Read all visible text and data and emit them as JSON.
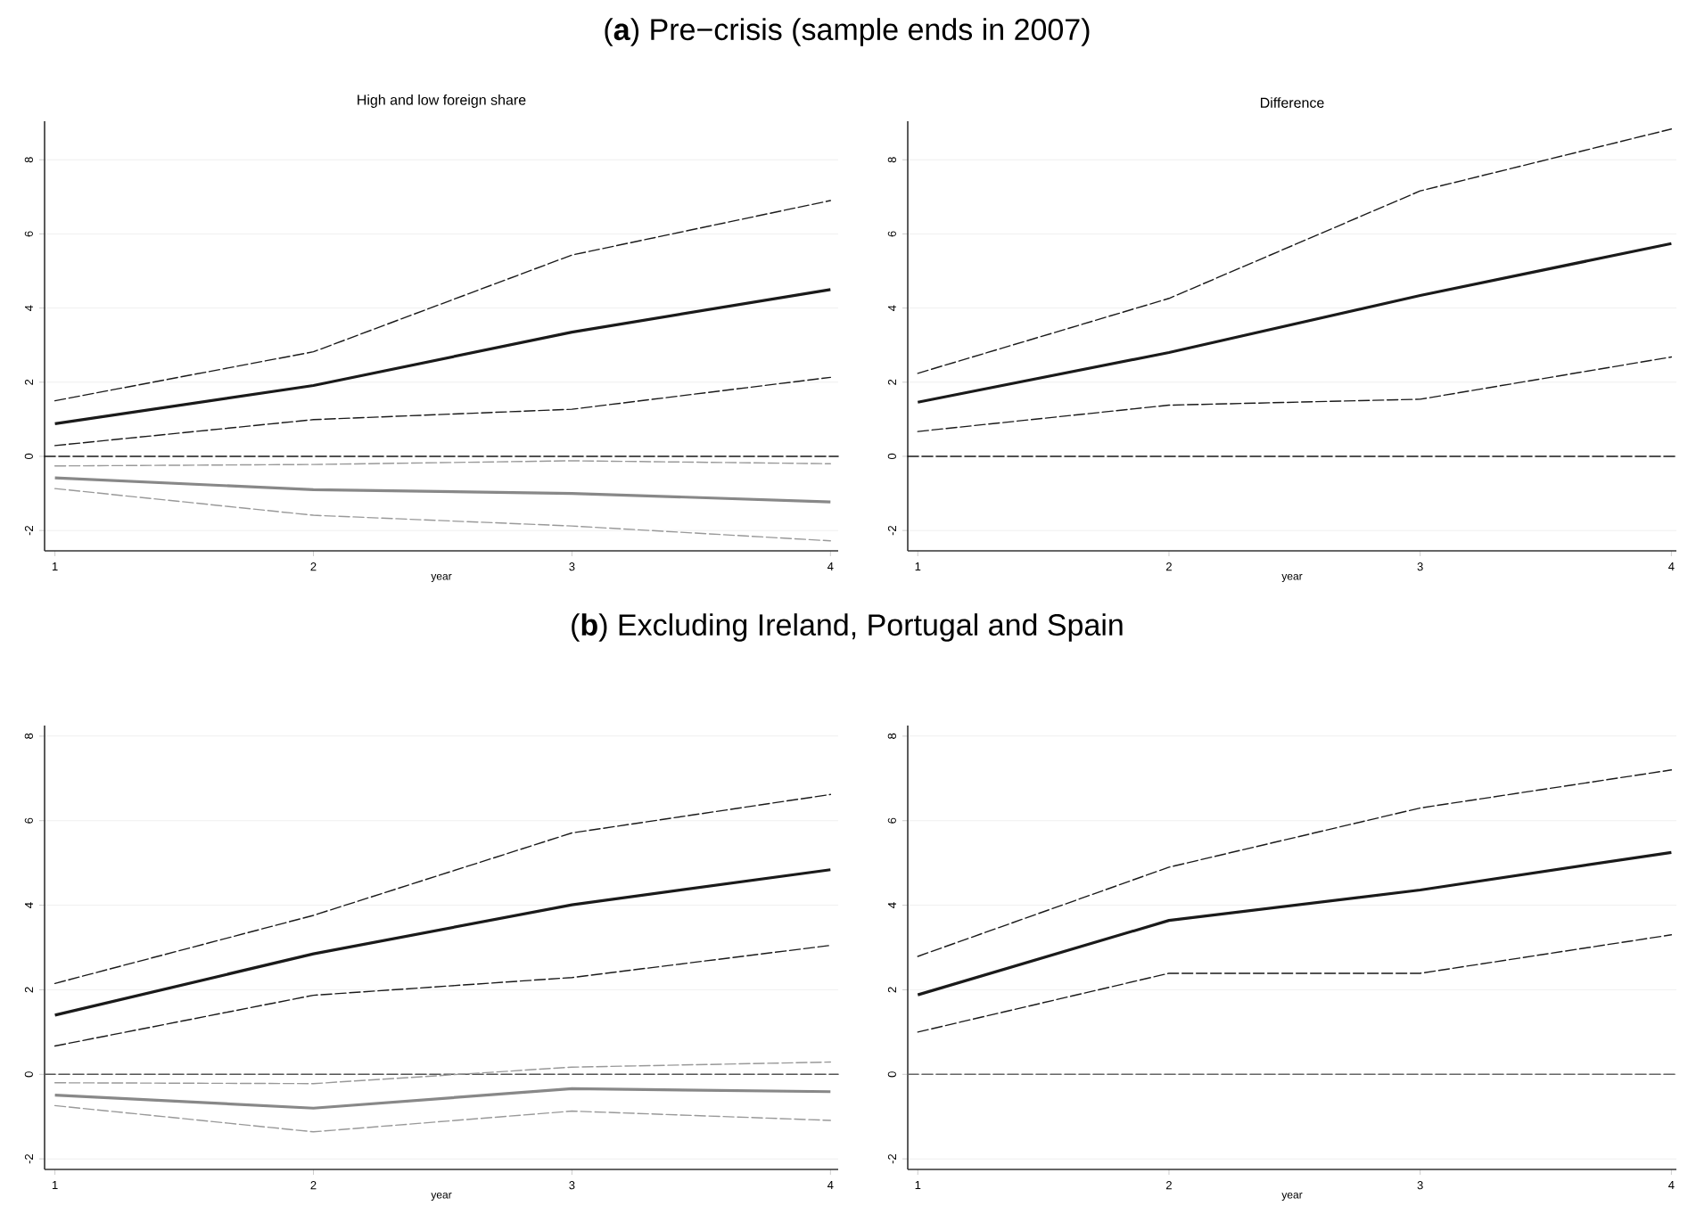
{
  "chart_data": [
    {
      "type": "line",
      "title": "(**a**) Pre−crisis (sample ends in 2007)",
      "subtitle": "High and low foreign share",
      "xlabel": "year",
      "x": [
        1,
        2,
        3,
        4
      ],
      "xlim": [
        0.96,
        4.03
      ],
      "xticks": [
        1,
        2,
        3,
        4
      ],
      "ylim": [
        -2.55,
        9.04
      ],
      "yticks": [
        -2,
        0,
        2,
        4,
        6,
        8
      ],
      "grid": "y",
      "series": [
        {
          "color": "#1a1a1a",
          "line_style": "solid",
          "values": [
            0.88,
            1.91,
            3.35,
            4.5
          ]
        },
        {
          "color": "#1a1a1a",
          "line_style": "dashed",
          "values": [
            1.5,
            2.82,
            5.43,
            6.9
          ]
        },
        {
          "color": "#1a1a1a",
          "line_style": "dashed",
          "values": [
            0.29,
            0.99,
            1.27,
            2.13
          ]
        },
        {
          "color": "#888888",
          "line_style": "solid",
          "values": [
            -0.58,
            -0.9,
            -1.0,
            -1.23
          ]
        },
        {
          "color": "#999999",
          "line_style": "dashed",
          "values": [
            -0.26,
            -0.22,
            -0.12,
            -0.2
          ]
        },
        {
          "color": "#999999",
          "line_style": "dashed",
          "values": [
            -0.87,
            -1.59,
            -1.88,
            -2.28
          ]
        }
      ],
      "ref_lines": [
        {
          "axis": "y",
          "value": 0,
          "color": "#1a1a1a",
          "line_style": "dashed"
        }
      ]
    },
    {
      "type": "line",
      "subtitle": "Difference",
      "xlabel": "year",
      "x": [
        1,
        2,
        3,
        4
      ],
      "xlim": [
        0.96,
        4.02
      ],
      "xticks": [
        1,
        2,
        3,
        4
      ],
      "ylim": [
        -2.55,
        9.04
      ],
      "yticks": [
        -2,
        0,
        2,
        4,
        6,
        8
      ],
      "grid": "y",
      "series": [
        {
          "color": "#1a1a1a",
          "line_style": "solid",
          "values": [
            1.46,
            2.8,
            4.34,
            5.74
          ]
        },
        {
          "color": "#1a1a1a",
          "line_style": "dashed",
          "values": [
            2.24,
            4.26,
            7.16,
            8.83
          ]
        },
        {
          "color": "#1a1a1a",
          "line_style": "dashed",
          "values": [
            0.67,
            1.38,
            1.54,
            2.68
          ]
        }
      ],
      "ref_lines": [
        {
          "axis": "y",
          "value": 0,
          "color": "#1a1a1a",
          "line_style": "dashed"
        }
      ]
    },
    {
      "type": "line",
      "title": "(**b**) Excluding Ireland, Portugal and Spain",
      "xlabel": "year",
      "x": [
        1,
        2,
        3,
        4
      ],
      "xlim": [
        0.96,
        4.03
      ],
      "xticks": [
        1,
        2,
        3,
        4
      ],
      "ylim": [
        -2.25,
        8.25
      ],
      "yticks": [
        -2,
        0,
        2,
        4,
        6,
        8
      ],
      "grid": "y",
      "series": [
        {
          "color": "#1a1a1a",
          "line_style": "solid",
          "values": [
            1.4,
            2.85,
            4.01,
            4.84
          ]
        },
        {
          "color": "#1a1a1a",
          "line_style": "dashed",
          "values": [
            2.15,
            3.76,
            5.71,
            6.62
          ]
        },
        {
          "color": "#1a1a1a",
          "line_style": "dashed",
          "values": [
            0.67,
            1.87,
            2.29,
            3.05
          ]
        },
        {
          "color": "#888888",
          "line_style": "solid",
          "values": [
            -0.49,
            -0.8,
            -0.34,
            -0.41
          ]
        },
        {
          "color": "#999999",
          "line_style": "dashed",
          "values": [
            -0.2,
            -0.22,
            0.17,
            0.29
          ]
        },
        {
          "color": "#999999",
          "line_style": "dashed",
          "values": [
            -0.74,
            -1.36,
            -0.87,
            -1.09
          ]
        }
      ],
      "ref_lines": [
        {
          "axis": "y",
          "value": 0,
          "color": "#555555",
          "line_style": "dashed"
        }
      ]
    },
    {
      "type": "line",
      "xlabel": "year",
      "x": [
        1,
        2,
        3,
        4
      ],
      "xlim": [
        0.96,
        4.02
      ],
      "xticks": [
        1,
        2,
        3,
        4
      ],
      "ylim": [
        -2.25,
        8.25
      ],
      "yticks": [
        -2,
        0,
        2,
        4,
        6,
        8
      ],
      "grid": "y",
      "series": [
        {
          "color": "#1a1a1a",
          "line_style": "solid",
          "values": [
            1.88,
            3.64,
            4.36,
            5.25
          ]
        },
        {
          "color": "#1a1a1a",
          "line_style": "dashed",
          "values": [
            2.79,
            4.9,
            6.3,
            7.2
          ]
        },
        {
          "color": "#1a1a1a",
          "line_style": "dashed",
          "values": [
            1.0,
            2.39,
            2.39,
            3.3
          ]
        }
      ],
      "ref_lines": [
        {
          "axis": "y",
          "value": 0,
          "color": "#666666",
          "line_style": "dashed"
        }
      ]
    }
  ]
}
